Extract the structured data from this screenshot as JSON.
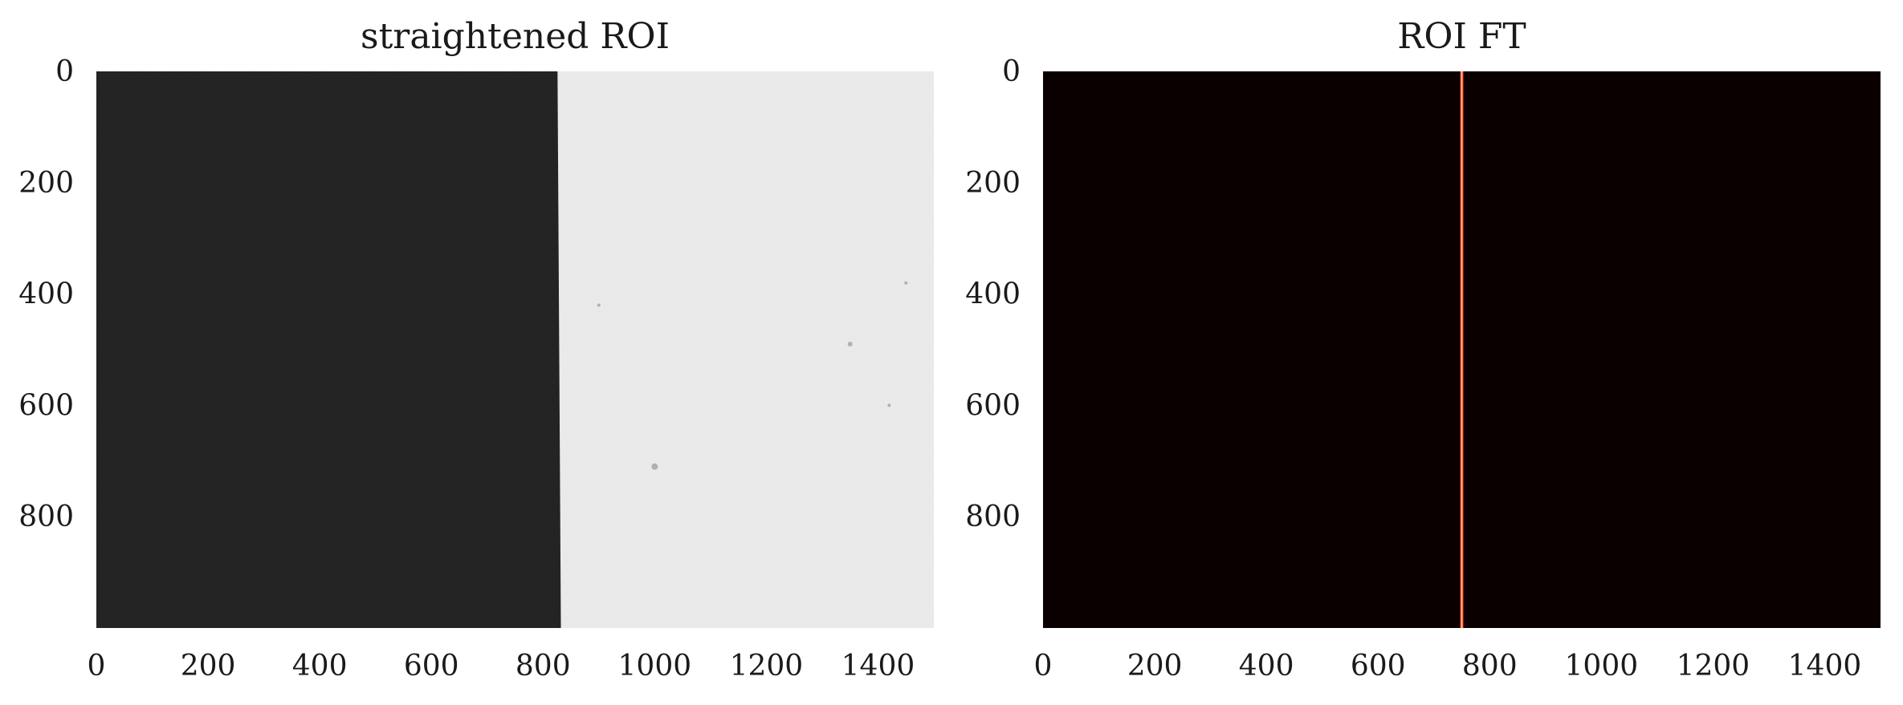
{
  "chart_data": [
    {
      "type": "image",
      "title": "straightened ROI",
      "xlabel": "",
      "ylabel": "",
      "xlim": [
        0,
        1500
      ],
      "ylim": [
        1000,
        0
      ],
      "xticks": [
        0,
        200,
        400,
        600,
        800,
        1000,
        1200,
        1400
      ],
      "yticks": [
        0,
        200,
        400,
        600,
        800
      ],
      "grid": false,
      "colormap": "gray",
      "content": {
        "left_value_color": "#1c1c1c",
        "right_value_color": "#ececec",
        "edge_top_x": 826,
        "edge_bottom_x": 832
      }
    },
    {
      "type": "image",
      "title": "ROI FT",
      "xlabel": "",
      "ylabel": "",
      "xlim": [
        0,
        1500
      ],
      "ylim": [
        1000,
        0
      ],
      "xticks": [
        0,
        200,
        400,
        600,
        800,
        1000,
        1200,
        1400
      ],
      "yticks": [
        0,
        200,
        400,
        600,
        800
      ],
      "grid": false,
      "colormap": "hot",
      "content": {
        "background_color": "#0b0000",
        "line_x": 750,
        "line_color": "#ff4020",
        "line_core_color": "#ffd0a0"
      }
    }
  ]
}
